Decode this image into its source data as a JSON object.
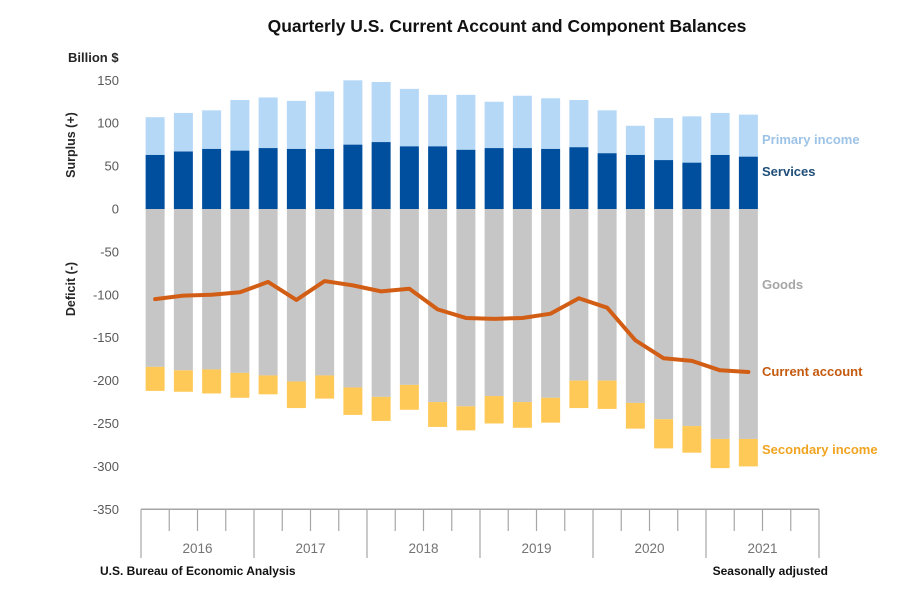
{
  "title": "Quarterly U.S. Current Account and Component Balances",
  "axis": {
    "unit_label": "Billion $",
    "surplus_label": "Surplus (+)",
    "deficit_label": "Deficit (-)",
    "y_ticks": [
      150,
      100,
      50,
      0,
      -50,
      -100,
      -150,
      -200,
      -250,
      -300,
      -350
    ],
    "year_labels": [
      "2016",
      "2017",
      "2018",
      "2019",
      "2020",
      "2021"
    ]
  },
  "footer": {
    "source": "U.S. Bureau of Economic Analysis",
    "note": "Seasonally adjusted"
  },
  "legend": [
    {
      "id": "primary-income",
      "label": "Primary income",
      "color": "#9dc3e6"
    },
    {
      "id": "services",
      "label": "Services",
      "color": "#1f4e79"
    },
    {
      "id": "goods",
      "label": "Goods",
      "color": "#a6a6a6"
    },
    {
      "id": "current-account",
      "label": "Current account",
      "color": "#c55a11"
    },
    {
      "id": "secondary-income",
      "label": "Secondary income",
      "color": "#f0a420"
    }
  ],
  "chart_data": {
    "type": "bar",
    "subtype": "stacked-bars-with-line",
    "unit": "billion USD",
    "title": "Quarterly U.S. Current Account and Component Balances",
    "ylabel": "Billion $",
    "ylim": [
      -350,
      150
    ],
    "grid": false,
    "legend_position": "right",
    "categories": [
      "2016 Q1",
      "2016 Q2",
      "2016 Q3",
      "2016 Q4",
      "2017 Q1",
      "2017 Q2",
      "2017 Q3",
      "2017 Q4",
      "2018 Q1",
      "2018 Q2",
      "2018 Q3",
      "2018 Q4",
      "2019 Q1",
      "2019 Q2",
      "2019 Q3",
      "2019 Q4",
      "2020 Q1",
      "2020 Q2",
      "2020 Q3",
      "2020 Q4",
      "2021 Q1",
      "2021 Q2"
    ],
    "series": [
      {
        "name": "Services",
        "color": "#004f9e",
        "values": [
          63,
          67,
          70,
          68,
          71,
          70,
          70,
          75,
          78,
          73,
          73,
          69,
          71,
          71,
          70,
          72,
          65,
          63,
          57,
          54,
          63,
          61
        ]
      },
      {
        "name": "Primary income",
        "color": "#b5d8f7",
        "values": [
          44,
          45,
          45,
          59,
          59,
          56,
          67,
          75,
          70,
          67,
          60,
          64,
          54,
          61,
          59,
          55,
          50,
          34,
          49,
          54,
          49,
          49
        ]
      },
      {
        "name": "Goods",
        "color": "#c6c6c6",
        "values": [
          -184,
          -188,
          -187,
          -191,
          -194,
          -201,
          -194,
          -208,
          -219,
          -205,
          -225,
          -230,
          -218,
          -225,
          -220,
          -200,
          -200,
          -226,
          -245,
          -253,
          -268,
          -268
        ]
      },
      {
        "name": "Secondary income",
        "color": "#ffc957",
        "values": [
          -28,
          -25,
          -28,
          -29,
          -22,
          -31,
          -27,
          -32,
          -28,
          -29,
          -29,
          -28,
          -32,
          -30,
          -29,
          -32,
          -33,
          -30,
          -34,
          -31,
          -34,
          -32
        ]
      }
    ],
    "line": {
      "name": "Current account",
      "color": "#d25e16",
      "values": [
        -105,
        -101,
        -100,
        -97,
        -85,
        -106,
        -84,
        -89,
        -96,
        -93,
        -117,
        -127,
        -128,
        -127,
        -122,
        -104,
        -115,
        -153,
        -174,
        -177,
        -188,
        -190
      ]
    }
  }
}
